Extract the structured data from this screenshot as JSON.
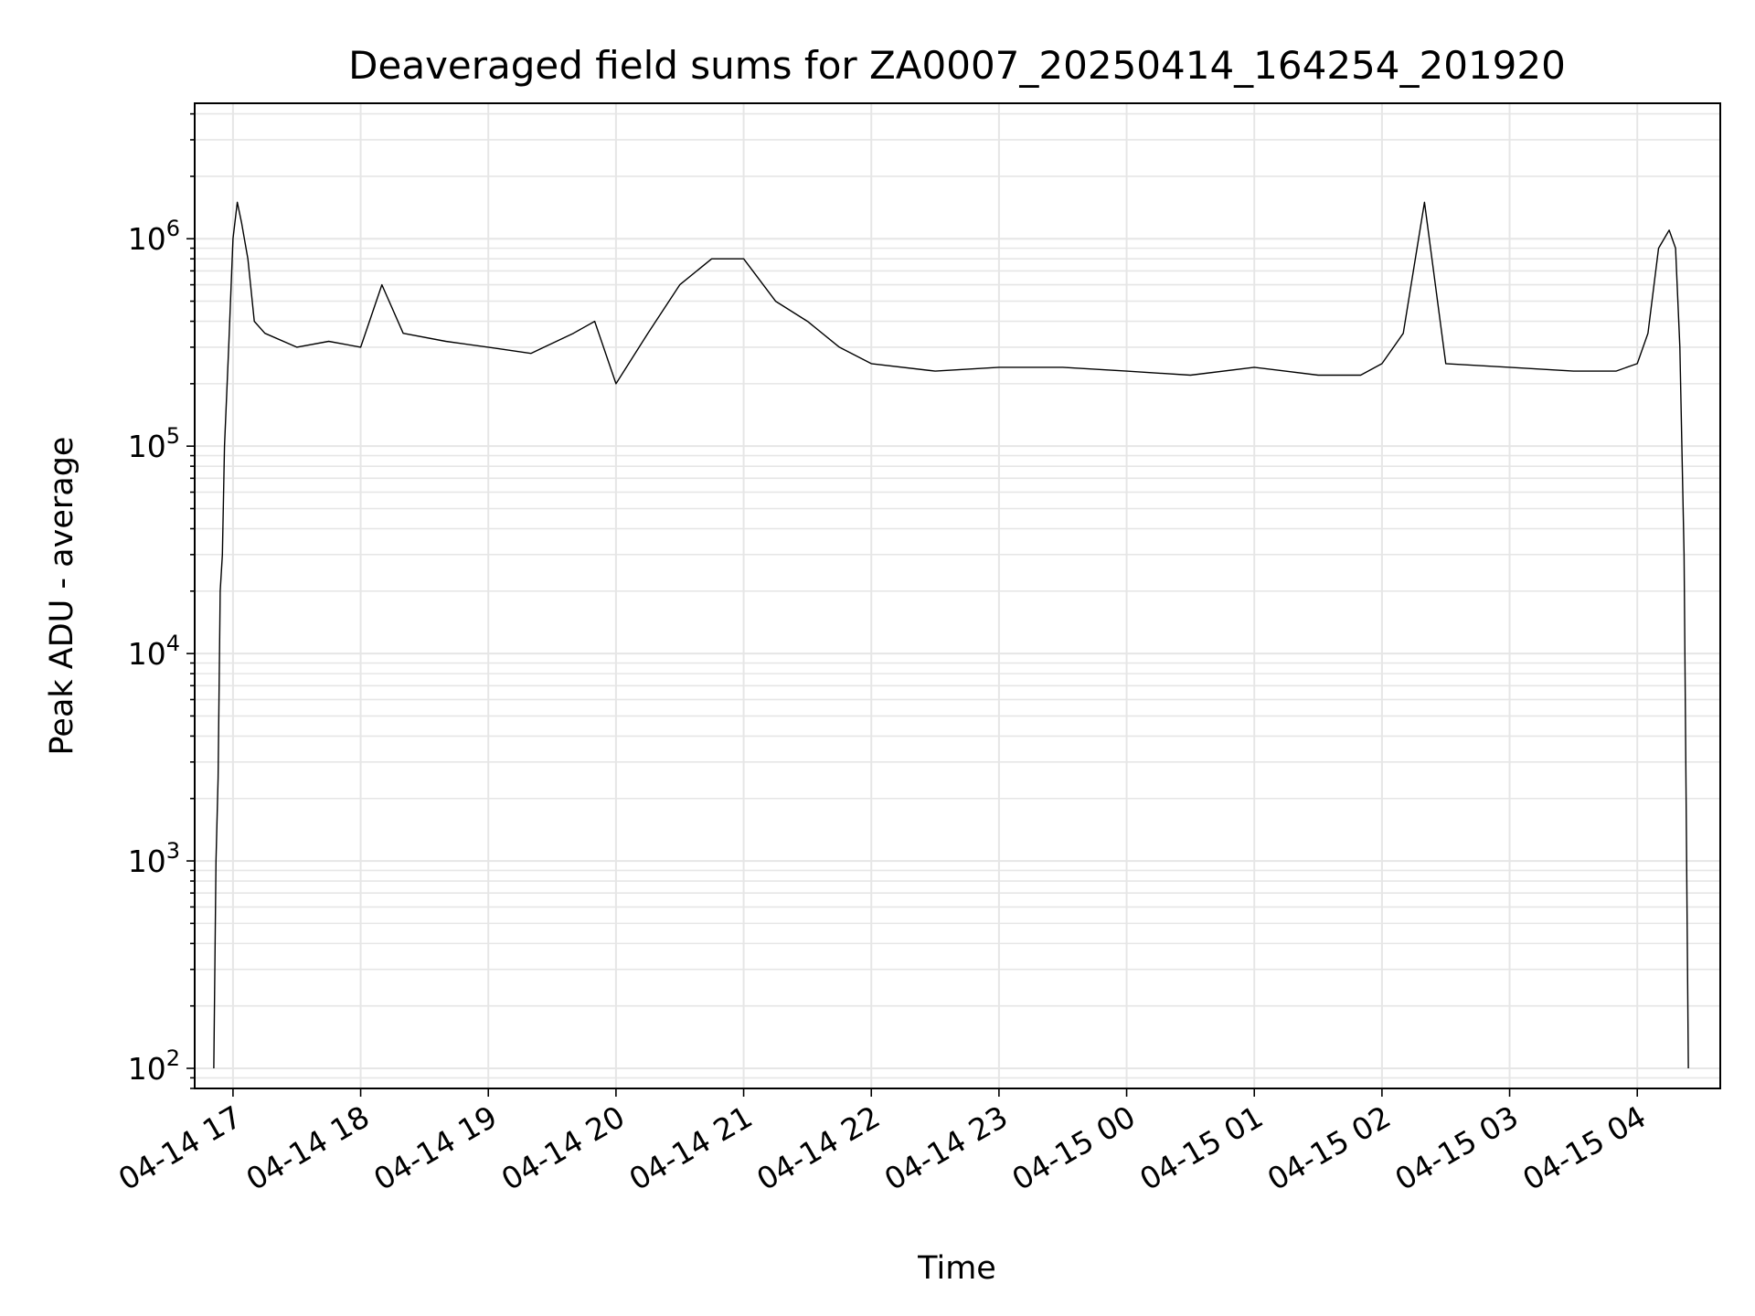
{
  "chart_data": {
    "type": "line",
    "title": "Deaveraged field sums for ZA0007_20250414_164254_201920",
    "xlabel": "Time",
    "ylabel": "Peak ADU - average",
    "yscale": "log",
    "ylim": [
      80,
      4500000
    ],
    "xlim": [
      "2025-04-14 16:42",
      "2025-04-15 04:39"
    ],
    "grid": true,
    "line_color": "#000000",
    "grid_color": "#e6e6e6",
    "x_tick_labels": [
      "04-14 17",
      "04-14 18",
      "04-14 19",
      "04-14 20",
      "04-14 21",
      "04-14 22",
      "04-14 23",
      "04-15 00",
      "04-15 01",
      "04-15 02",
      "04-15 03",
      "04-15 04"
    ],
    "x_tick_values": [
      "2025-04-14 17:00",
      "2025-04-14 18:00",
      "2025-04-14 19:00",
      "2025-04-14 20:00",
      "2025-04-14 21:00",
      "2025-04-14 22:00",
      "2025-04-14 23:00",
      "2025-04-15 00:00",
      "2025-04-15 01:00",
      "2025-04-15 02:00",
      "2025-04-15 03:00",
      "2025-04-15 04:00"
    ],
    "y_tick_values": [
      100,
      1000,
      10000,
      100000,
      1000000
    ],
    "y_tick_labels": [
      {
        "base": "10",
        "exp": "2"
      },
      {
        "base": "10",
        "exp": "3"
      },
      {
        "base": "10",
        "exp": "4"
      },
      {
        "base": "10",
        "exp": "5"
      },
      {
        "base": "10",
        "exp": "6"
      }
    ],
    "series": [
      {
        "x": [
          "2025-04-14 16:51",
          "2025-04-14 16:52",
          "2025-04-14 16:53",
          "2025-04-14 16:54",
          "2025-04-14 16:55",
          "2025-04-14 16:56",
          "2025-04-14 16:58",
          "2025-04-14 17:00",
          "2025-04-14 17:02",
          "2025-04-14 17:04",
          "2025-04-14 17:07",
          "2025-04-14 17:10",
          "2025-04-14 17:15",
          "2025-04-14 17:30",
          "2025-04-14 17:45",
          "2025-04-14 18:00",
          "2025-04-14 18:10",
          "2025-04-14 18:20",
          "2025-04-14 18:40",
          "2025-04-14 19:00",
          "2025-04-14 19:20",
          "2025-04-14 19:40",
          "2025-04-14 19:50",
          "2025-04-14 20:00",
          "2025-04-14 20:15",
          "2025-04-14 20:30",
          "2025-04-14 20:45",
          "2025-04-14 21:00",
          "2025-04-14 21:15",
          "2025-04-14 21:30",
          "2025-04-14 21:45",
          "2025-04-14 22:00",
          "2025-04-14 22:30",
          "2025-04-14 23:00",
          "2025-04-14 23:30",
          "2025-04-15 00:00",
          "2025-04-15 00:30",
          "2025-04-15 01:00",
          "2025-04-15 01:30",
          "2025-04-15 01:50",
          "2025-04-15 02:00",
          "2025-04-15 02:10",
          "2025-04-15 02:20",
          "2025-04-15 02:30",
          "2025-04-15 03:00",
          "2025-04-15 03:30",
          "2025-04-15 03:50",
          "2025-04-15 04:00",
          "2025-04-15 04:05",
          "2025-04-15 04:10",
          "2025-04-15 04:15",
          "2025-04-15 04:18",
          "2025-04-15 04:20",
          "2025-04-15 04:22",
          "2025-04-15 04:24"
        ],
        "y": [
          100,
          1000,
          2500,
          20000,
          30000,
          100000,
          300000,
          1000000,
          1500000,
          1200000,
          800000,
          400000,
          350000,
          300000,
          320000,
          300000,
          600000,
          350000,
          320000,
          300000,
          280000,
          350000,
          400000,
          200000,
          350000,
          600000,
          800000,
          800000,
          500000,
          400000,
          300000,
          250000,
          230000,
          240000,
          240000,
          230000,
          220000,
          240000,
          220000,
          220000,
          250000,
          350000,
          1500000,
          250000,
          240000,
          230000,
          230000,
          250000,
          350000,
          900000,
          1100000,
          900000,
          300000,
          30000,
          100
        ]
      }
    ]
  }
}
